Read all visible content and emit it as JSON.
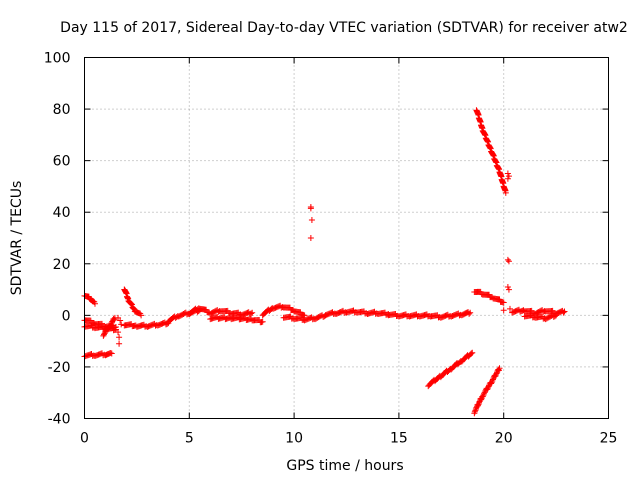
{
  "chart_data": {
    "type": "scatter",
    "title": "Day 115 of 2017, Sidereal Day-to-day VTEC variation (SDTVAR) for receiver atw2",
    "xlabel": "GPS time / hours",
    "ylabel": "SDTVAR / TECUs",
    "xlim": [
      0,
      25
    ],
    "ylim": [
      -40,
      100
    ],
    "xticks": [
      0,
      5,
      10,
      15,
      20,
      25
    ],
    "yticks": [
      -40,
      -20,
      0,
      20,
      40,
      60,
      80,
      100
    ],
    "grid": true,
    "marker": "+",
    "color": "#ff0000",
    "series": [
      {
        "name": "SDTVAR",
        "segments": [
          {
            "x": [
              0.0,
              0.25,
              0.5
            ],
            "y": [
              8.0,
              6.8,
              4.5
            ]
          },
          {
            "x": [
              0.0,
              0.5,
              1.0,
              1.3
            ],
            "y": [
              -15.5,
              -15.3,
              -15.0,
              -14.8
            ]
          },
          {
            "x": [
              0.0,
              0.5,
              1.0,
              1.5
            ],
            "y": [
              -1.5,
              -3.0,
              -4.0,
              -4.5
            ]
          },
          {
            "x": [
              0.0,
              0.5,
              1.0,
              1.5
            ],
            "y": [
              -4.0,
              -4.5,
              -5.0,
              -5.5
            ]
          },
          {
            "x": [
              0.9,
              1.2,
              1.45
            ],
            "y": [
              -7.5,
              -4.0,
              -1.0
            ]
          },
          {
            "x": [
              1.9,
              2.1,
              2.4,
              2.7
            ],
            "y": [
              10.5,
              6.0,
              2.0,
              0.0
            ]
          },
          {
            "x": [
              1.9,
              2.5,
              3.0,
              3.5,
              4.0
            ],
            "y": [
              -3.5,
              -4.0,
              -4.0,
              -3.5,
              -3.0
            ]
          },
          {
            "x": [
              4.0,
              4.5,
              5.0,
              5.5
            ],
            "y": [
              -2.0,
              0.0,
              1.0,
              2.0
            ]
          },
          {
            "x": [
              5.0,
              5.5,
              6.0,
              6.5,
              7.0,
              7.5,
              8.0
            ],
            "y": [
              1.0,
              3.0,
              1.0,
              2.0,
              1.0,
              0.5,
              1.0
            ]
          },
          {
            "x": [
              6.0,
              7.0,
              8.0,
              8.5
            ],
            "y": [
              -1.0,
              -1.0,
              -1.5,
              -2.5
            ]
          },
          {
            "x": [
              8.5,
              9.0,
              9.5,
              10.0,
              10.5
            ],
            "y": [
              0.5,
              3.0,
              3.5,
              2.0,
              0.0
            ]
          },
          {
            "x": [
              9.5,
              10.0,
              10.5,
              11.0,
              11.5
            ],
            "y": [
              -0.5,
              -1.0,
              -1.5,
              -1.0,
              0.0
            ]
          },
          {
            "x": [
              11.5,
              12.0,
              12.5,
              13.0,
              13.5,
              14.0,
              14.5
            ],
            "y": [
              0.5,
              1.0,
              1.5,
              1.5,
              1.0,
              1.0,
              0.5
            ]
          },
          {
            "x": [
              14.5,
              15.0,
              15.5,
              16.0,
              16.5,
              17.0,
              17.5,
              18.0,
              18.4
            ],
            "y": [
              0.5,
              0.0,
              0.0,
              0.0,
              0.0,
              -0.5,
              0.0,
              0.5,
              1.0
            ]
          },
          {
            "x": [
              18.7,
              19.0,
              19.4,
              19.8,
              20.1
            ],
            "y": [
              80.0,
              72.0,
              64.0,
              56.0,
              47.5
            ]
          },
          {
            "x": [
              18.6,
              19.0,
              19.5,
              20.0
            ],
            "y": [
              9.5,
              8.5,
              7.0,
              5.0
            ]
          },
          {
            "x": [
              20.4,
              21.0,
              21.5,
              22.0,
              22.5,
              22.9
            ],
            "y": [
              1.5,
              2.0,
              1.0,
              2.0,
              1.0,
              1.5
            ]
          },
          {
            "x": [
              21.0,
              21.5,
              22.0,
              22.5
            ],
            "y": [
              0.0,
              -0.5,
              -1.0,
              0.0
            ]
          },
          {
            "x": [
              16.4,
              17.0,
              17.5,
              18.0,
              18.5
            ],
            "y": [
              -27.0,
              -23.5,
              -20.5,
              -17.5,
              -14.5
            ]
          },
          {
            "x": [
              18.6,
              19.0,
              19.4,
              19.8
            ],
            "y": [
              -37.5,
              -31.0,
              -26.0,
              -20.5
            ]
          }
        ],
        "points": [
          {
            "x": 10.8,
            "y": 42.0
          },
          {
            "x": 10.8,
            "y": 41.5
          },
          {
            "x": 10.85,
            "y": 37.0
          },
          {
            "x": 10.8,
            "y": 30.0
          },
          {
            "x": 20.2,
            "y": 55.0
          },
          {
            "x": 20.25,
            "y": 54.0
          },
          {
            "x": 20.2,
            "y": 53.0
          },
          {
            "x": 20.2,
            "y": 21.5
          },
          {
            "x": 20.25,
            "y": 21.0
          },
          {
            "x": 20.2,
            "y": 11.0
          },
          {
            "x": 20.25,
            "y": 10.0
          },
          {
            "x": 1.6,
            "y": -1.0
          },
          {
            "x": 1.6,
            "y": -6.5
          },
          {
            "x": 1.65,
            "y": -8.5
          },
          {
            "x": 1.65,
            "y": -11.0
          },
          {
            "x": 1.7,
            "y": -2.0
          },
          {
            "x": 1.75,
            "y": -3.5
          },
          {
            "x": 20.0,
            "y": 2.0
          },
          {
            "x": 20.3,
            "y": 2.5
          }
        ]
      }
    ]
  }
}
